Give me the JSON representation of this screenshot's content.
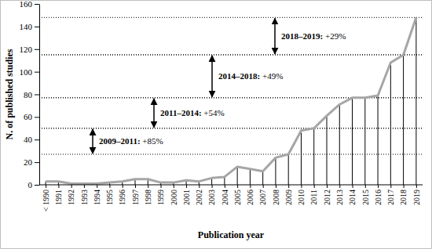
{
  "chart_data": {
    "type": "line",
    "x_label": "Publication year",
    "y_label": "N. of published studies",
    "categories": [
      "< 1990",
      "1991",
      "1992",
      "1993",
      "1994",
      "1995",
      "1996",
      "1997",
      "1998",
      "1999",
      "2000",
      "2001",
      "2002",
      "2003",
      "2004",
      "2005",
      "2006",
      "2007",
      "2008",
      "2009",
      "2010",
      "2011",
      "2012",
      "2013",
      "2014",
      "2015",
      "2016",
      "2017",
      "2018",
      "2019"
    ],
    "values": [
      3,
      3,
      1,
      1,
      1,
      2,
      3,
      5,
      5,
      2,
      2,
      4,
      3,
      6,
      7,
      16,
      14,
      12,
      24,
      27,
      48,
      50,
      61,
      71,
      77,
      77,
      79,
      108,
      115,
      148
    ],
    "color": "#a6a6a6",
    "ylim": [
      0,
      160
    ],
    "yticks": [
      0,
      20,
      40,
      60,
      80,
      100,
      120,
      140,
      160
    ],
    "annotations": [
      {
        "label": "2009–2011: +85%",
        "from": 27,
        "to": 50
      },
      {
        "label": "2011–2014: +54%",
        "from": 50,
        "to": 77
      },
      {
        "label": "2014–2018: +49%",
        "from": 77,
        "to": 115
      },
      {
        "label": "2018–2019: +29%",
        "from": 115,
        "to": 148
      }
    ]
  }
}
